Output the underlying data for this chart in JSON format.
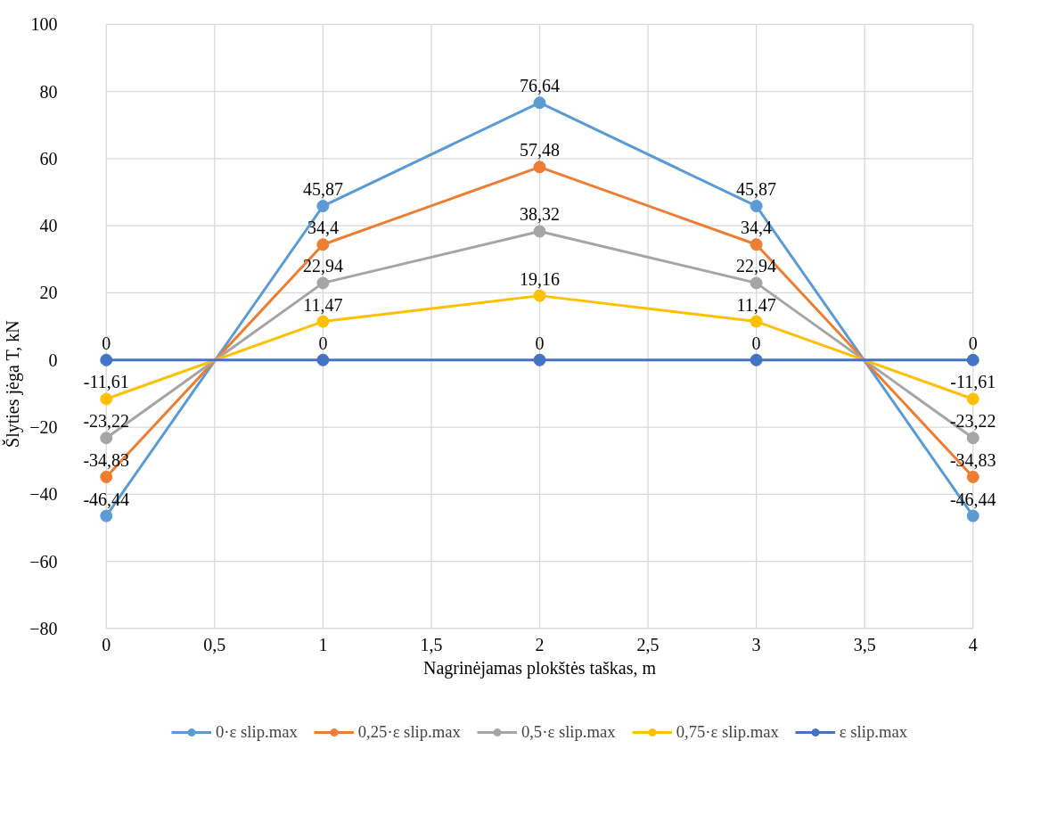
{
  "chart_data": {
    "type": "line",
    "xlabel": "Nagrinėjamas plokštės taškas, m",
    "ylabel": "Šlyties jėga T, kN",
    "x": [
      0,
      1,
      2,
      3,
      4
    ],
    "xlim": [
      0,
      4
    ],
    "xticks": [
      0,
      {
        "value": 0.5,
        "label": "0,5"
      },
      1,
      {
        "value": 1.5,
        "label": "1,5"
      },
      2,
      {
        "value": 2.5,
        "label": "2,5"
      },
      3,
      {
        "value": 3.5,
        "label": "3,5"
      },
      4
    ],
    "ylim": [
      -80,
      100
    ],
    "yticks": [
      -80,
      -60,
      -40,
      -20,
      0,
      20,
      40,
      60,
      80,
      100
    ],
    "grid": true,
    "legend": "bottom",
    "marker": "circle",
    "line_style": "solid",
    "series": [
      {
        "name": "0·ε slip.max",
        "color": "#5b9bd5",
        "values": [
          -46.44,
          45.87,
          76.64,
          45.87,
          -46.44
        ],
        "value_labels": [
          "-46,44",
          "45,87",
          "76,64",
          "45,87",
          "-46,44"
        ]
      },
      {
        "name": "0,25·ε slip.max",
        "color": "#ed7d31",
        "values": [
          -34.83,
          34.4,
          57.48,
          34.4,
          -34.83
        ],
        "value_labels": [
          "-34,83",
          "34,4",
          "57,48",
          "34,4",
          "-34,83"
        ]
      },
      {
        "name": "0,5·ε slip.max",
        "color": "#a5a5a5",
        "values": [
          -23.22,
          22.94,
          38.32,
          22.94,
          -23.22
        ],
        "value_labels": [
          "-23,22",
          "22,94",
          "38,32",
          "22,94",
          "-23,22"
        ]
      },
      {
        "name": "0,75·ε slip.max",
        "color": "#ffc000",
        "values": [
          -11.61,
          11.47,
          19.16,
          11.47,
          -11.61
        ],
        "value_labels": [
          "-11,61",
          "11,47",
          "19,16",
          "11,47",
          "-11,61"
        ]
      },
      {
        "name": "ε slip.max",
        "color": "#4472c4",
        "values": [
          0,
          0,
          0,
          0,
          0
        ],
        "value_labels": [
          "0",
          "0",
          "0",
          "0",
          "0"
        ]
      }
    ]
  }
}
